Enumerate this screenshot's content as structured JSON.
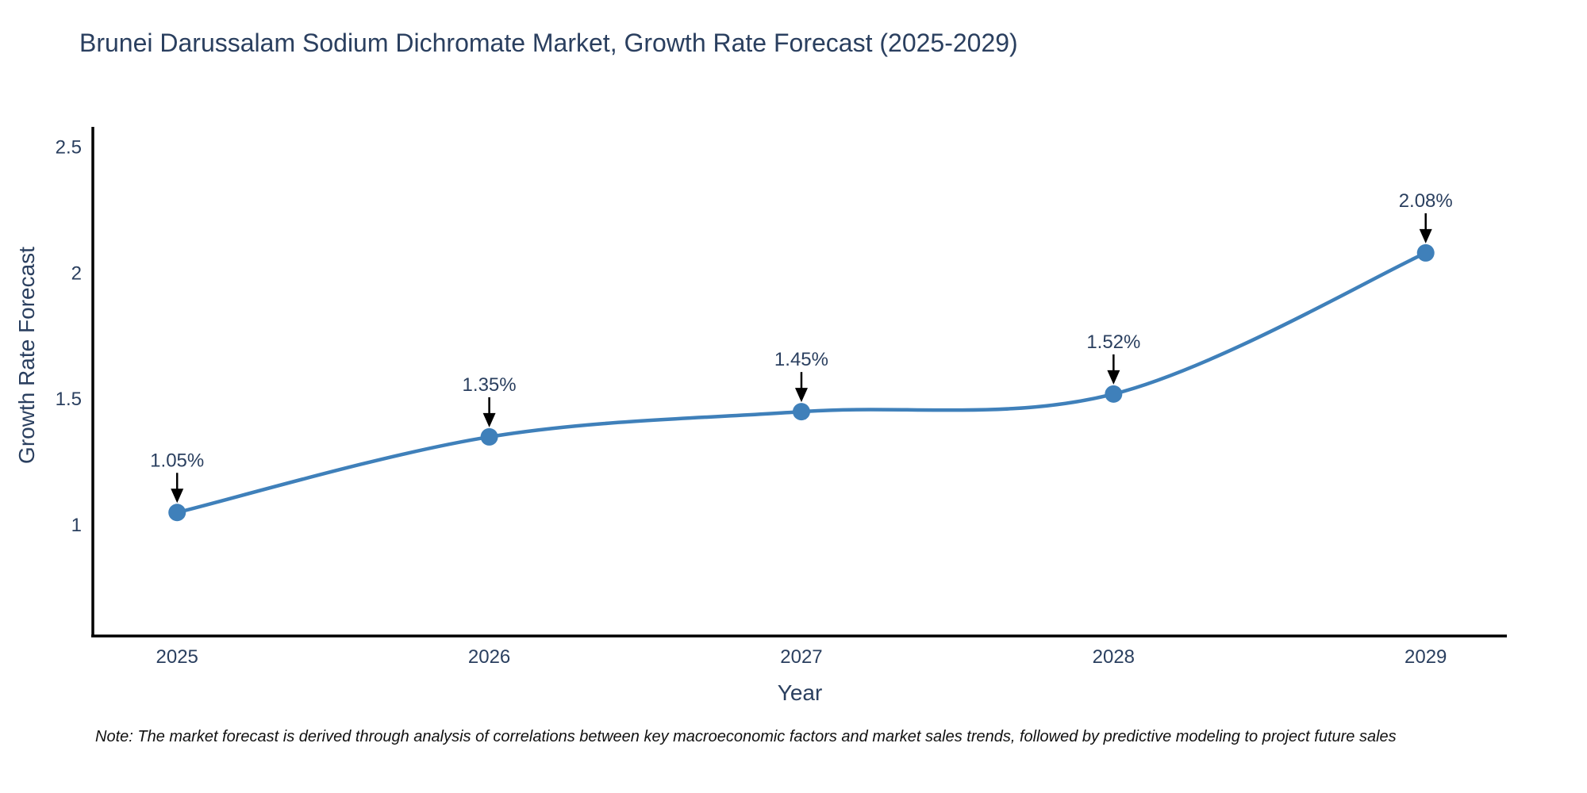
{
  "title": "Brunei Darussalam Sodium Dichromate Market, Growth Rate Forecast (2025-2029)",
  "footnote": "Note: The market forecast is derived through analysis of correlations between key macroeconomic factors and market sales trends, followed by predictive modeling to project future sales",
  "chart_data": {
    "type": "line",
    "title": "Brunei Darussalam Sodium Dichromate Market, Growth Rate Forecast (2025-2029)",
    "xlabel": "Year",
    "ylabel": "Growth Rate Forecast",
    "x": [
      2025,
      2026,
      2027,
      2028,
      2029
    ],
    "y": [
      1.05,
      1.35,
      1.45,
      1.52,
      2.08
    ],
    "point_labels": [
      "1.05%",
      "1.35%",
      "1.45%",
      "1.52%",
      "2.08%"
    ],
    "xtick_labels": [
      "2025",
      "2026",
      "2027",
      "2028",
      "2029"
    ],
    "ytick_values": [
      1,
      1.5,
      2,
      2.5
    ],
    "ytick_labels": [
      "1",
      "1.5",
      "2",
      "2.5"
    ],
    "xlim": [
      2024.73,
      2029.26
    ],
    "ylim": [
      0.56,
      2.58
    ],
    "line_shape": "spline",
    "grid": false,
    "legend_position": "none",
    "colors": {
      "line": "#3f80ba",
      "marker": "#3f80ba",
      "axis_line": "#000000",
      "tick_text": "#2a3f5f",
      "annotation_text": "#2a3f5f",
      "annotation_arrow": "#000000",
      "background": "#ffffff"
    }
  }
}
